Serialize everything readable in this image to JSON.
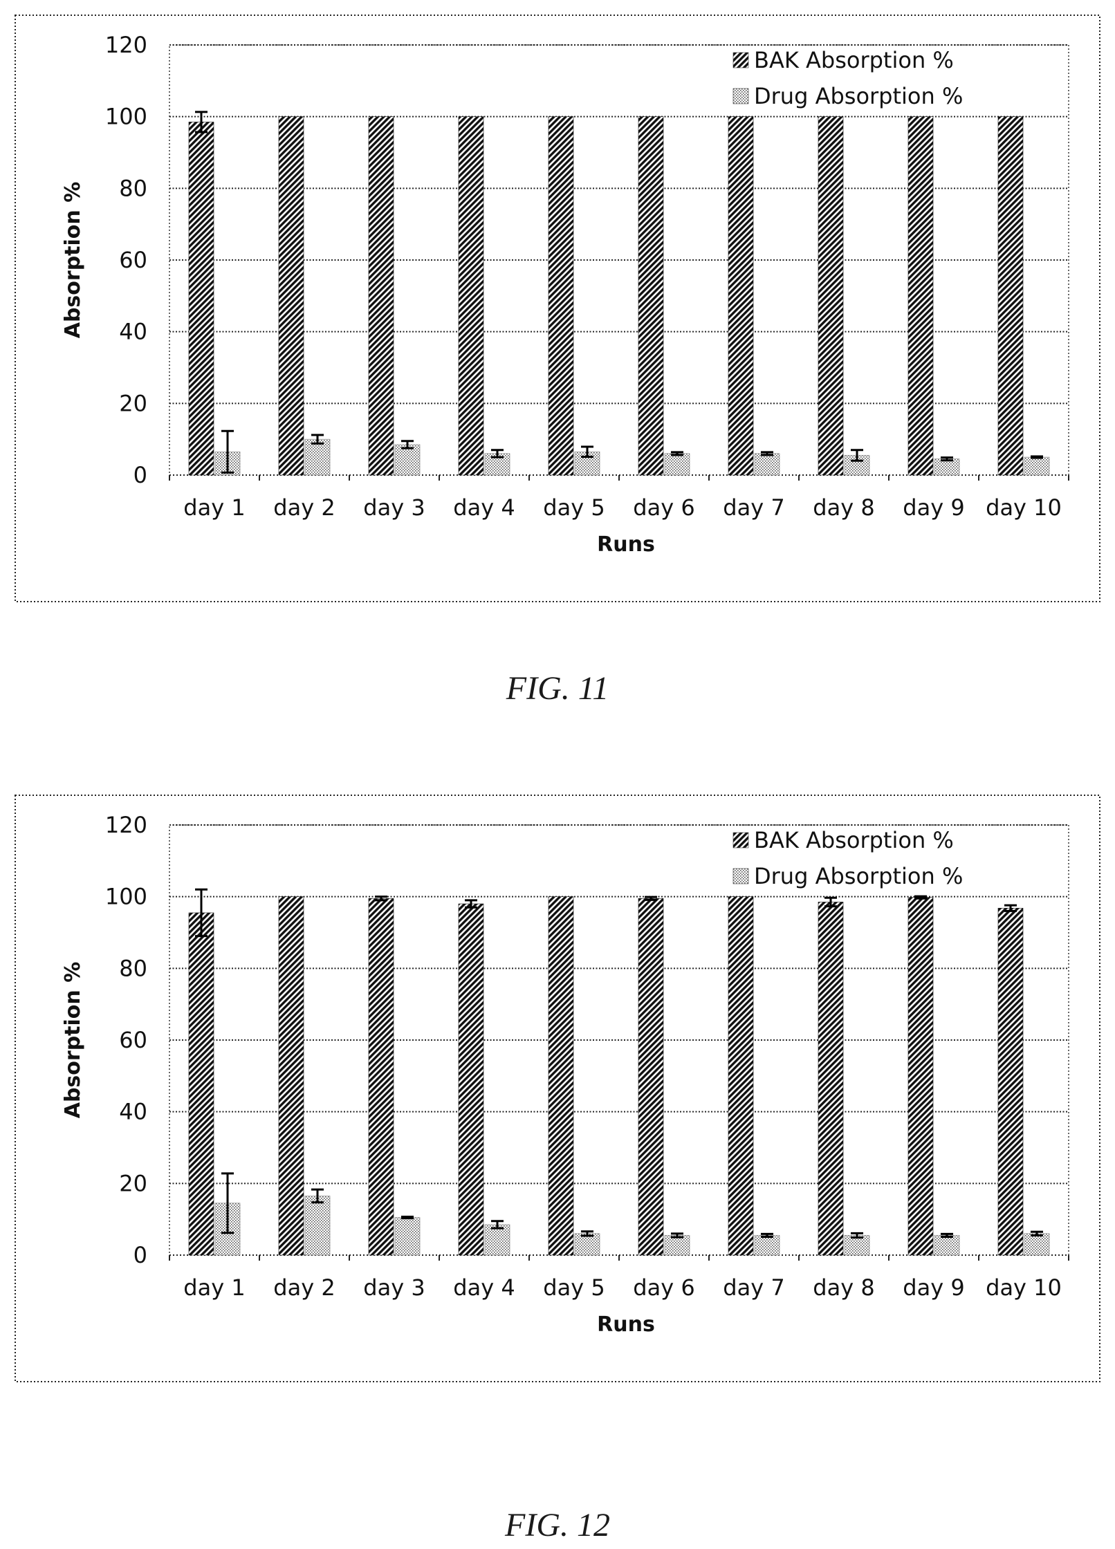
{
  "figures": [
    {
      "caption": "FIG. 11",
      "chart_data": {
        "type": "bar",
        "xlabel": "Runs",
        "ylabel": "Absorption %",
        "ylim": [
          0,
          120
        ],
        "yticks": [
          "0",
          "20",
          "40",
          "60",
          "80",
          "100",
          "120"
        ],
        "grid": true,
        "legend": "top-right",
        "categories": [
          "day 1",
          "day 2",
          "day 3",
          "day 4",
          "day 5",
          "day 6",
          "day 7",
          "day 8",
          "day 9",
          "day 10"
        ],
        "series": [
          {
            "name": "BAK Absorption %",
            "values": [
              98.5,
              100,
              100,
              100,
              100,
              100,
              100,
              100,
              100,
              100
            ],
            "errors": [
              2.8,
              0,
              0,
              0,
              0,
              0,
              0,
              0,
              0,
              0
            ]
          },
          {
            "name": "Drug Absorption %",
            "values": [
              6.5,
              10,
              8.5,
              6,
              6.5,
              6,
              6,
              5.5,
              4.5,
              5
            ],
            "errors": [
              5.8,
              1.2,
              1.0,
              1.0,
              1.4,
              0.4,
              0.4,
              1.5,
              0.4,
              0.2
            ]
          }
        ]
      }
    },
    {
      "caption": "FIG. 12",
      "chart_data": {
        "type": "bar",
        "xlabel": "Runs",
        "ylabel": "Absorption %",
        "ylim": [
          0,
          120
        ],
        "yticks": [
          "0",
          "20",
          "40",
          "60",
          "80",
          "100",
          "120"
        ],
        "grid": true,
        "legend": "top-right",
        "categories": [
          "day 1",
          "day 2",
          "day 3",
          "day 4",
          "day 5",
          "day 6",
          "day 7",
          "day 8",
          "day 9",
          "day 10"
        ],
        "series": [
          {
            "name": "BAK Absorption %",
            "values": [
              95.5,
              100,
              99.5,
              98,
              100,
              99.5,
              100,
              98.5,
              99.8,
              96.8
            ],
            "errors": [
              6.5,
              0,
              0.5,
              1.0,
              0,
              0.4,
              0,
              1.2,
              0.3,
              0.8
            ]
          },
          {
            "name": "Drug Absorption %",
            "values": [
              14.5,
              16.5,
              10.5,
              8.5,
              6,
              5.5,
              5.5,
              5.5,
              5.5,
              6
            ],
            "errors": [
              8.3,
              1.8,
              0.2,
              1.0,
              0.6,
              0.5,
              0.4,
              0.6,
              0.4,
              0.5
            ]
          }
        ]
      }
    }
  ]
}
